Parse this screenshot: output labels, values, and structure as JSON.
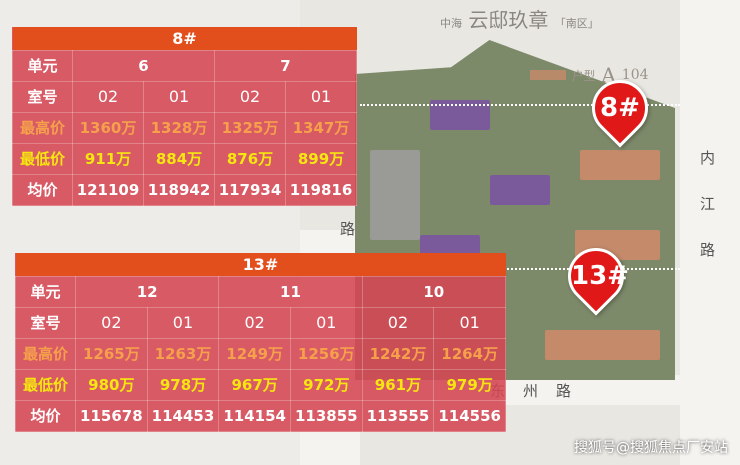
{
  "map": {
    "brand": "中海",
    "title": "云邸玖章",
    "zone": "「南区」",
    "legend_type": "户型",
    "legend_letter": "A",
    "legend_area": "104",
    "roads": {
      "east": "内江路",
      "west": "路",
      "south": "东州路"
    },
    "markers": [
      "8#",
      "13#"
    ],
    "colors": {
      "marker": "#e01818",
      "header": "#e24e1c",
      "table": "#d44652",
      "max_price": "#f6a04c",
      "min_price": "#f7e60f"
    }
  },
  "table8": {
    "title": "8#",
    "labels": {
      "unit": "单元",
      "room": "室号",
      "max": "最高价",
      "min": "最低价",
      "avg": "均价"
    },
    "units": [
      "6",
      "7"
    ],
    "rooms": [
      "02",
      "01",
      "02",
      "01"
    ],
    "max": [
      "1360万",
      "1328万",
      "1325万",
      "1347万"
    ],
    "min": [
      "911万",
      "884万",
      "876万",
      "899万"
    ],
    "avg": [
      "121109",
      "118942",
      "117934",
      "119816"
    ]
  },
  "table13": {
    "title": "13#",
    "labels": {
      "unit": "单元",
      "room": "室号",
      "max": "最高价",
      "min": "最低价",
      "avg": "均价"
    },
    "units": [
      "12",
      "11",
      "10"
    ],
    "rooms": [
      "02",
      "01",
      "02",
      "01",
      "02",
      "01"
    ],
    "max": [
      "1265万",
      "1263万",
      "1249万",
      "1256万",
      "1242万",
      "1264万"
    ],
    "min": [
      "980万",
      "978万",
      "967万",
      "972万",
      "961万",
      "979万"
    ],
    "avg": [
      "115678",
      "114453",
      "114154",
      "113855",
      "113555",
      "114556"
    ]
  },
  "watermark": "搜狐号@搜狐焦点厂安站"
}
